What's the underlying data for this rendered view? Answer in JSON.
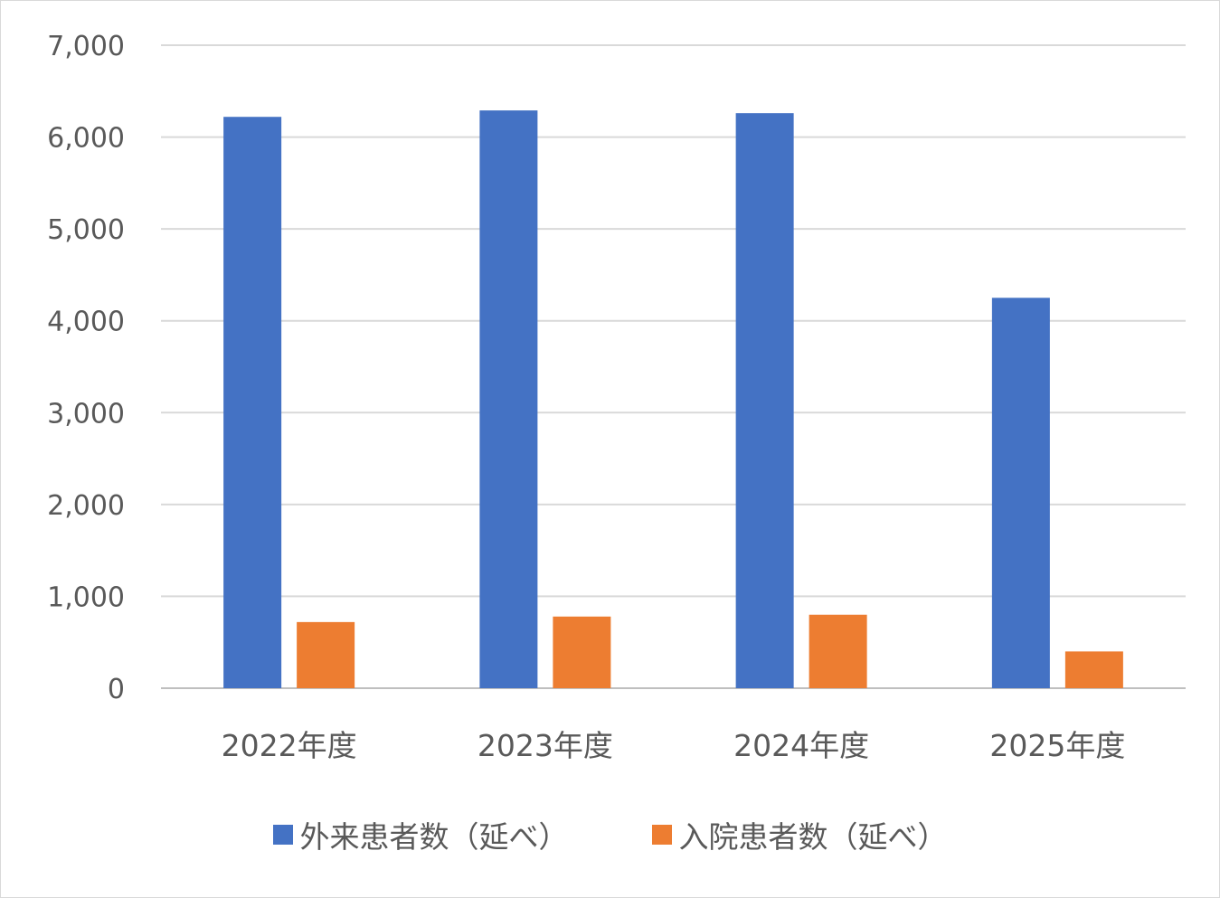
{
  "chart_data": {
    "type": "bar",
    "categories": [
      "2022年度",
      "2023年度",
      "2024年度",
      "2025年度"
    ],
    "series": [
      {
        "name": "外来患者数（延べ）",
        "color": "#4472C4",
        "values": [
          6220,
          6290,
          6260,
          4250
        ]
      },
      {
        "name": "入院患者数（延べ）",
        "color": "#ED7D31",
        "values": [
          720,
          780,
          800,
          400
        ]
      }
    ],
    "ylim": [
      0,
      7000
    ],
    "yticks": [
      0,
      1000,
      2000,
      3000,
      4000,
      5000,
      6000,
      7000
    ],
    "ytick_labels": [
      "0",
      "1,000",
      "2,000",
      "3,000",
      "4,000",
      "5,000",
      "6,000",
      "7,000"
    ],
    "grid": true,
    "legend_position": "bottom"
  }
}
